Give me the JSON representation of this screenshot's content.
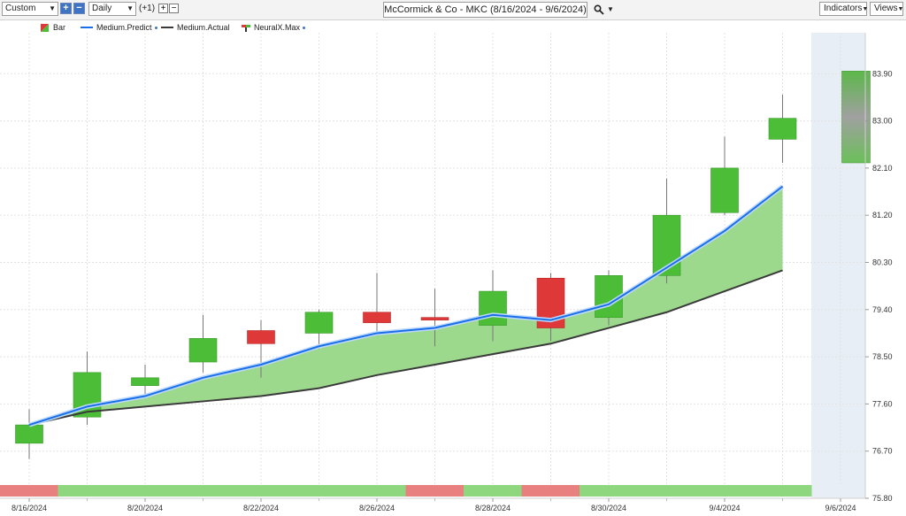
{
  "toolbar": {
    "range_select": "Custom",
    "interval_select": "Daily",
    "offset_label": "(+1)",
    "title": "McCormick & Co - MKC (8/16/2024 - 9/6/2024)",
    "indicators_label": "Indicators",
    "views_label": "Views"
  },
  "legend": [
    {
      "label": "Bar"
    },
    {
      "label": "Medium.Predict"
    },
    {
      "label": "Medium.Actual"
    },
    {
      "label": "NeuralX.Max"
    }
  ],
  "colors": {
    "up": "#4cbd36",
    "down": "#de3838",
    "predict": "#1a6fe8",
    "actual": "#3a3a3a",
    "fill": "#9cd98c",
    "forecast_bg": "#e8eef5",
    "strip_up": "#8fd77f",
    "strip_down": "#e88080"
  },
  "chart_data": {
    "type": "candlestick",
    "ylim": [
      75.8,
      84.8
    ],
    "y_ticks": [
      "83.90",
      "83.00",
      "82.10",
      "81.20",
      "80.30",
      "79.40",
      "78.50",
      "77.60",
      "76.70",
      "75.80"
    ],
    "x_tick_labels": [
      "8/16/2024",
      "8/20/2024",
      "8/22/2024",
      "8/26/2024",
      "8/28/2024",
      "8/30/2024",
      "9/4/2024",
      "9/6/2024"
    ],
    "candles": [
      {
        "open": 76.85,
        "close": 77.2,
        "high": 77.5,
        "low": 76.55
      },
      {
        "open": 77.35,
        "close": 78.2,
        "high": 78.6,
        "low": 77.2
      },
      {
        "open": 77.95,
        "close": 78.1,
        "high": 78.35,
        "low": 77.75
      },
      {
        "open": 78.4,
        "close": 78.85,
        "high": 79.3,
        "low": 78.2
      },
      {
        "open": 79.0,
        "close": 78.75,
        "high": 79.2,
        "low": 78.1
      },
      {
        "open": 78.95,
        "close": 79.35,
        "high": 79.4,
        "low": 78.65
      },
      {
        "open": 79.35,
        "close": 79.15,
        "high": 80.1,
        "low": 78.9
      },
      {
        "open": 79.25,
        "close": 79.2,
        "high": 79.8,
        "low": 78.7
      },
      {
        "open": 79.1,
        "close": 79.75,
        "high": 80.15,
        "low": 78.8
      },
      {
        "open": 80.0,
        "close": 79.05,
        "high": 80.1,
        "low": 78.8
      },
      {
        "open": 79.25,
        "close": 80.05,
        "high": 80.15,
        "low": 79.1
      },
      {
        "open": 80.05,
        "close": 81.2,
        "high": 81.9,
        "low": 79.9
      },
      {
        "open": 81.25,
        "close": 82.1,
        "high": 82.7,
        "low": 81.2
      },
      {
        "open": 82.65,
        "close": 83.05,
        "high": 83.5,
        "low": 82.2
      }
    ],
    "forecast_bar": {
      "high": 83.95,
      "low": 82.2
    },
    "series": [
      {
        "name": "Medium.Predict",
        "values": [
          77.2,
          77.55,
          77.75,
          78.1,
          78.35,
          78.7,
          78.95,
          79.05,
          79.3,
          79.2,
          79.5,
          80.2,
          80.9,
          81.75
        ]
      },
      {
        "name": "Medium.Actual",
        "values": [
          77.2,
          77.45,
          77.55,
          77.65,
          77.75,
          77.9,
          78.15,
          78.35,
          78.55,
          78.75,
          79.05,
          79.35,
          79.75,
          80.15
        ]
      }
    ],
    "signal_strip": [
      "down",
      "up",
      "up",
      "up",
      "up",
      "up",
      "up",
      "down",
      "up",
      "down",
      "up",
      "up",
      "up",
      "up"
    ]
  }
}
